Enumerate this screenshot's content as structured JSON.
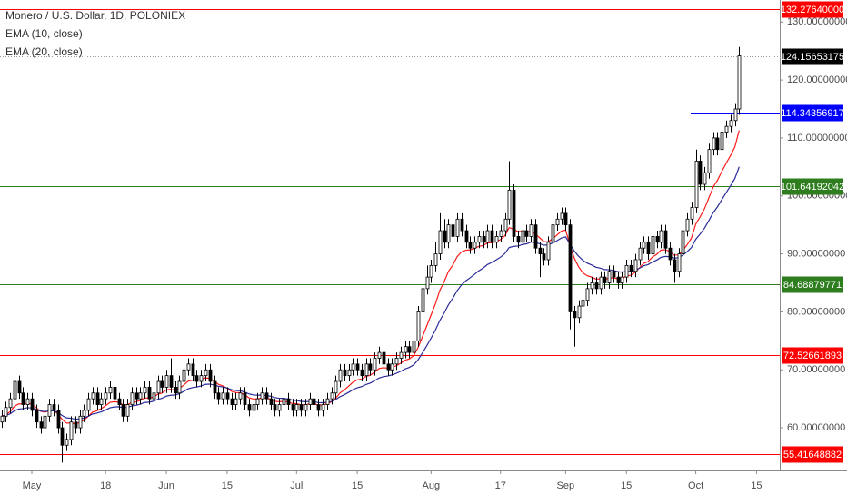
{
  "chart_data": {
    "type": "candlestick",
    "title": "Monero / U.S. Dollar, 1D, POLONIEX",
    "categories": [
      null,
      null,
      null,
      null,
      null,
      null,
      null,
      "May",
      null,
      null,
      null,
      null,
      null,
      null,
      null,
      null,
      null,
      null,
      null,
      null,
      null,
      null,
      null,
      null,
      "18",
      null,
      null,
      null,
      null,
      null,
      null,
      null,
      null,
      null,
      null,
      null,
      null,
      null,
      "Jun",
      null,
      null,
      null,
      null,
      null,
      null,
      null,
      null,
      null,
      null,
      null,
      null,
      null,
      "15",
      null,
      null,
      null,
      null,
      null,
      null,
      null,
      null,
      null,
      null,
      null,
      null,
      null,
      null,
      null,
      "Jul",
      null,
      null,
      null,
      null,
      null,
      null,
      null,
      null,
      null,
      null,
      null,
      null,
      null,
      "15",
      null,
      null,
      null,
      null,
      null,
      null,
      null,
      null,
      null,
      null,
      null,
      null,
      null,
      null,
      null,
      null,
      "Aug",
      null,
      null,
      null,
      null,
      null,
      null,
      null,
      null,
      null,
      null,
      null,
      null,
      null,
      null,
      null,
      "17",
      null,
      null,
      null,
      null,
      null,
      null,
      null,
      null,
      null,
      null,
      null,
      null,
      null,
      null,
      "Sep",
      null,
      null,
      null,
      null,
      null,
      null,
      null,
      null,
      null,
      null,
      null,
      null,
      null,
      "15",
      null,
      null,
      null,
      null,
      null,
      null,
      null,
      null,
      null,
      null,
      null,
      null,
      null,
      null,
      null,
      "Oct",
      null,
      null,
      null,
      null,
      null,
      null,
      null,
      null,
      null,
      null,
      null,
      null,
      null,
      "15"
    ],
    "open": [
      61,
      62,
      63.5,
      65,
      68,
      66,
      64,
      65,
      63,
      61,
      60,
      62,
      64,
      63,
      60,
      57,
      58,
      61,
      60,
      62,
      63,
      65,
      66,
      64,
      65,
      66,
      67,
      65,
      64,
      62,
      64,
      66,
      65,
      66,
      67,
      65,
      66,
      68,
      67,
      69,
      67,
      66,
      68,
      70,
      71,
      69,
      68,
      69,
      70,
      68,
      66,
      65,
      66,
      65,
      64,
      65,
      66,
      64,
      63,
      64,
      65,
      66,
      65,
      64,
      63,
      64,
      65,
      64,
      63,
      64,
      63,
      64,
      65,
      64,
      63,
      64,
      65,
      66,
      68,
      70,
      69,
      70,
      71,
      70,
      69,
      71,
      70,
      72,
      73,
      71,
      70,
      71,
      72,
      73,
      74,
      73,
      75,
      80,
      84,
      86,
      88,
      90,
      94,
      92,
      95,
      93,
      96,
      94,
      92,
      91,
      92,
      93,
      92,
      94,
      92,
      93,
      94,
      96,
      101,
      93,
      92,
      94,
      93,
      95,
      91,
      90,
      89,
      92,
      95,
      96,
      97,
      95,
      80,
      79,
      81,
      82,
      84,
      85,
      84,
      86,
      85,
      87,
      86,
      85,
      86,
      88,
      87,
      89,
      91,
      92,
      90,
      93,
      92,
      94,
      91,
      89,
      87,
      90,
      94,
      96,
      98,
      106,
      102,
      104,
      108,
      110,
      108,
      111,
      112,
      113,
      115,
      null,
      null,
      null,
      null
    ],
    "high": [
      63,
      64.5,
      66,
      71,
      69,
      67,
      66,
      66,
      64,
      62,
      63,
      65,
      65,
      64,
      61,
      59,
      62,
      62,
      63,
      64,
      66,
      67,
      67,
      66,
      67,
      68,
      68,
      66,
      65,
      65,
      67,
      67,
      67,
      68,
      68,
      67,
      69,
      69,
      70,
      72,
      68,
      69,
      71,
      72,
      72,
      70,
      70,
      71,
      71,
      69,
      67,
      67,
      67,
      66,
      66,
      67,
      67,
      65,
      65,
      66,
      67,
      67,
      66,
      65,
      65,
      66,
      66,
      65,
      65,
      65,
      65,
      66,
      66,
      65,
      65,
      66,
      67,
      69,
      71,
      71,
      71,
      72,
      72,
      71,
      72,
      72,
      73,
      74,
      74,
      72,
      72,
      73,
      74,
      75,
      75,
      76,
      81,
      87,
      88,
      89,
      92,
      97,
      96,
      96,
      96,
      97,
      97,
      95,
      93,
      93,
      94,
      94,
      95,
      95,
      94,
      95,
      97,
      106,
      102,
      94,
      95,
      95,
      96,
      96,
      92,
      91,
      93,
      96,
      97,
      98,
      98,
      96,
      81,
      82,
      83,
      85,
      86,
      86,
      87,
      87,
      88,
      88,
      87,
      87,
      89,
      89,
      90,
      92,
      93,
      93,
      94,
      94,
      95,
      95,
      92,
      90,
      91,
      95,
      97,
      99,
      108,
      107,
      105,
      109,
      111,
      111,
      112,
      113,
      114,
      116,
      125.7,
      null,
      null,
      null,
      null
    ],
    "low": [
      60,
      61,
      62.5,
      64,
      65,
      63,
      63,
      62,
      60,
      59,
      59,
      61,
      62,
      59,
      54,
      56,
      57,
      59,
      59,
      61,
      62,
      64,
      63,
      63,
      64,
      65,
      64,
      63,
      61,
      61,
      63,
      64,
      64,
      65,
      64,
      64,
      65,
      66,
      66,
      66,
      65,
      65,
      67,
      69,
      68,
      67,
      67,
      68,
      67,
      65,
      64,
      64,
      64,
      63,
      63,
      64,
      63,
      62,
      62,
      63,
      64,
      64,
      63,
      62,
      62,
      63,
      63,
      62,
      62,
      62,
      62,
      63,
      63,
      62,
      62,
      63,
      64,
      65,
      67,
      68,
      68,
      69,
      69,
      68,
      68,
      69,
      69,
      71,
      70,
      69,
      69,
      70,
      71,
      72,
      72,
      72,
      74,
      79,
      83,
      85,
      87,
      89,
      91,
      91,
      92,
      92,
      93,
      91,
      90,
      90,
      91,
      91,
      91,
      91,
      91,
      92,
      93,
      95,
      92,
      91,
      91,
      92,
      92,
      90,
      86,
      88,
      88,
      91,
      94,
      95,
      94,
      77,
      74,
      78,
      80,
      81,
      83,
      83,
      83,
      84,
      84,
      85,
      84,
      84,
      85,
      86,
      86,
      88,
      90,
      89,
      89,
      91,
      91,
      90,
      88,
      85,
      86,
      89,
      93,
      95,
      97,
      101,
      101,
      103,
      107,
      107,
      107,
      110,
      111,
      112,
      114,
      null,
      null,
      null,
      null
    ],
    "close": [
      62,
      63.5,
      65,
      68,
      66,
      64,
      65,
      63,
      61,
      60,
      62,
      64,
      63,
      60,
      57,
      58,
      61,
      60,
      62,
      63,
      65,
      66,
      64,
      65,
      66,
      67,
      65,
      64,
      62,
      64,
      66,
      65,
      66,
      67,
      65,
      66,
      68,
      67,
      69,
      67,
      66,
      68,
      70,
      71,
      69,
      68,
      69,
      70,
      68,
      66,
      65,
      66,
      65,
      64,
      65,
      66,
      64,
      63,
      64,
      65,
      66,
      65,
      64,
      63,
      64,
      65,
      64,
      63,
      64,
      63,
      64,
      65,
      64,
      63,
      64,
      65,
      66,
      68,
      70,
      69,
      70,
      71,
      70,
      69,
      71,
      70,
      72,
      73,
      71,
      70,
      71,
      72,
      73,
      74,
      73,
      75,
      80,
      84,
      86,
      88,
      90,
      94,
      92,
      95,
      93,
      96,
      94,
      92,
      91,
      92,
      93,
      92,
      94,
      92,
      93,
      94,
      96,
      101,
      93,
      92,
      94,
      93,
      95,
      91,
      90,
      89,
      92,
      95,
      96,
      97,
      95,
      80,
      79,
      81,
      82,
      84,
      85,
      84,
      86,
      85,
      87,
      86,
      85,
      86,
      88,
      87,
      89,
      91,
      92,
      90,
      93,
      92,
      94,
      91,
      89,
      87,
      90,
      94,
      96,
      98,
      106,
      102,
      104,
      108,
      110,
      108,
      111,
      112,
      113,
      115,
      124.16,
      null,
      null,
      null,
      null
    ],
    "up_color": "#ffffff",
    "down_color": "#000000",
    "wick_color": "#000000",
    "indicators": [
      {
        "name": "EMA (10, close)",
        "period": 10,
        "color": "#ff1a1a"
      },
      {
        "name": "EMA (20, close)",
        "period": 20,
        "color": "#2a2a9a"
      }
    ],
    "levels": [
      {
        "value": 132.2764,
        "label": "132.27640000",
        "color": "#ff0000"
      },
      {
        "value": 114.34356917,
        "label": "114.34356917",
        "color": "#0000ff"
      },
      {
        "value": 101.64192042,
        "label": "101.64192042",
        "color": "#2e7d1e"
      },
      {
        "value": 84.68879771,
        "label": "84.68879771",
        "color": "#2e7d1e"
      },
      {
        "value": 72.52661893,
        "label": "72.52661893",
        "color": "#ff0000"
      },
      {
        "value": 55.41648882,
        "label": "55.41648882",
        "color": "#ff0000"
      }
    ],
    "last_price": {
      "value": 124.15653175,
      "label": "124.15653175",
      "color": "#000000"
    },
    "ylim": [
      52.65,
      133.8
    ],
    "yticks": [
      {
        "value": 60,
        "label": "60.00000000"
      },
      {
        "value": 70,
        "label": "70.00000000"
      },
      {
        "value": 80,
        "label": "80.00000000"
      },
      {
        "value": 90,
        "label": "90.00000000"
      },
      {
        "value": 100,
        "label": "100.00000000"
      },
      {
        "value": 110,
        "label": "110.00000000"
      },
      {
        "value": 120,
        "label": "120.00000000"
      },
      {
        "value": 130,
        "label": "130.00000000"
      }
    ]
  }
}
